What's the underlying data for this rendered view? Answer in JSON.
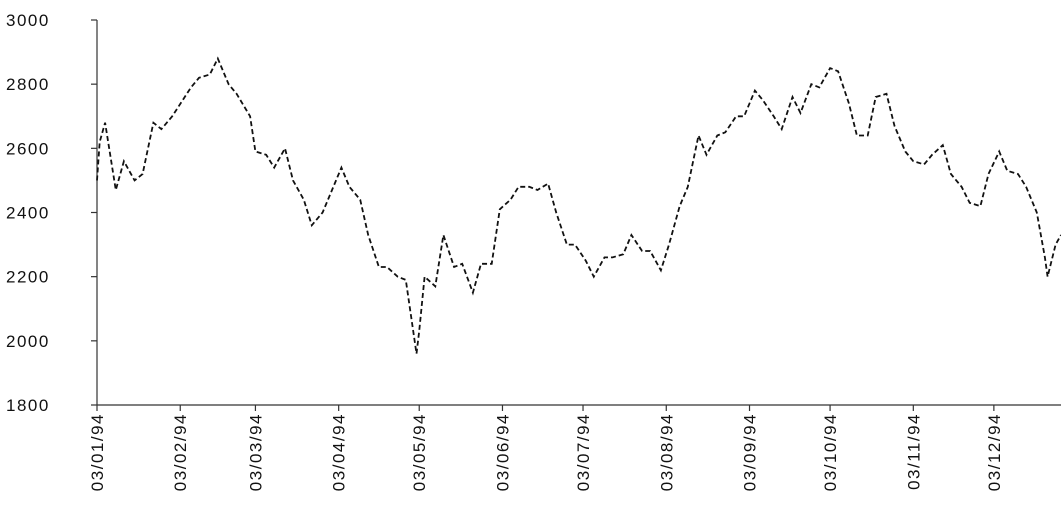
{
  "chart_data": {
    "type": "line",
    "color": "#111111",
    "x": [
      "1994-01-03",
      "1994-01-04",
      "1994-01-06",
      "1994-01-10",
      "1994-01-13",
      "1994-01-17",
      "1994-01-20",
      "1994-01-24",
      "1994-01-27",
      "1994-01-31",
      "1994-02-07",
      "1994-02-10",
      "1994-02-14",
      "1994-02-17",
      "1994-02-21",
      "1994-02-24",
      "1994-03-01",
      "1994-03-03",
      "1994-03-07",
      "1994-03-10",
      "1994-03-14",
      "1994-03-17",
      "1994-03-21",
      "1994-03-24",
      "1994-03-28",
      "1994-04-04",
      "1994-04-07",
      "1994-04-11",
      "1994-04-14",
      "1994-04-18",
      "1994-04-21",
      "1994-04-25",
      "1994-04-28",
      "1994-05-02",
      "1994-05-03",
      "1994-05-05",
      "1994-05-09",
      "1994-05-12",
      "1994-05-16",
      "1994-05-19",
      "1994-05-23",
      "1994-05-26",
      "1994-05-30",
      "1994-06-02",
      "1994-06-06",
      "1994-06-09",
      "1994-06-13",
      "1994-06-16",
      "1994-06-20",
      "1994-06-23",
      "1994-06-27",
      "1994-06-30",
      "1994-07-04",
      "1994-07-07",
      "1994-07-11",
      "1994-07-14",
      "1994-07-18",
      "1994-07-21",
      "1994-07-25",
      "1994-07-28",
      "1994-08-01",
      "1994-08-04",
      "1994-08-08",
      "1994-08-11",
      "1994-08-15",
      "1994-08-18",
      "1994-08-22",
      "1994-08-25",
      "1994-08-29",
      "1994-09-01",
      "1994-09-05",
      "1994-09-08",
      "1994-09-12",
      "1994-09-15",
      "1994-09-19",
      "1994-09-22",
      "1994-09-26",
      "1994-09-29",
      "1994-10-03",
      "1994-10-06",
      "1994-10-10",
      "1994-10-13",
      "1994-10-17",
      "1994-10-20",
      "1994-10-24",
      "1994-10-27",
      "1994-10-31",
      "1994-11-03",
      "1994-11-07",
      "1994-11-10",
      "1994-11-14",
      "1994-11-17",
      "1994-11-21",
      "1994-11-24",
      "1994-11-28",
      "1994-12-01",
      "1994-12-05",
      "1994-12-08",
      "1994-12-12",
      "1994-12-15",
      "1994-12-19",
      "1994-12-22",
      "1994-12-23",
      "1994-12-26",
      "1994-12-28"
    ],
    "values": [
      2500,
      2620,
      2680,
      2470,
      2560,
      2500,
      2520,
      2680,
      2660,
      2700,
      2790,
      2820,
      2830,
      2880,
      2800,
      2770,
      2700,
      2590,
      2580,
      2540,
      2600,
      2500,
      2440,
      2360,
      2400,
      2540,
      2480,
      2440,
      2330,
      2230,
      2230,
      2200,
      2190,
      1960,
      2030,
      2200,
      2170,
      2330,
      2230,
      2240,
      2150,
      2240,
      2240,
      2410,
      2440,
      2480,
      2480,
      2470,
      2490,
      2400,
      2300,
      2300,
      2250,
      2200,
      2260,
      2260,
      2270,
      2330,
      2280,
      2280,
      2220,
      2300,
      2420,
      2480,
      2640,
      2580,
      2640,
      2650,
      2700,
      2700,
      2780,
      2750,
      2700,
      2660,
      2760,
      2710,
      2800,
      2790,
      2850,
      2840,
      2740,
      2640,
      2640,
      2760,
      2770,
      2670,
      2590,
      2560,
      2550,
      2580,
      2610,
      2520,
      2480,
      2430,
      2420,
      2520,
      2590,
      2530,
      2520,
      2480,
      2400,
      2260,
      2200,
      2300,
      2330
    ],
    "xlim": [
      "1994-01-03",
      "1994-12-28"
    ],
    "xticks": [
      {
        "value": "1994-01-03",
        "label": "03/01/94"
      },
      {
        "value": "1994-02-03",
        "label": "03/02/94"
      },
      {
        "value": "1994-03-03",
        "label": "03/03/94"
      },
      {
        "value": "1994-04-03",
        "label": "03/04/94"
      },
      {
        "value": "1994-05-03",
        "label": "03/05/94"
      },
      {
        "value": "1994-06-03",
        "label": "03/06/94"
      },
      {
        "value": "1994-07-03",
        "label": "03/07/94"
      },
      {
        "value": "1994-08-03",
        "label": "03/08/94"
      },
      {
        "value": "1994-09-03",
        "label": "03/09/94"
      },
      {
        "value": "1994-10-03",
        "label": "03/10/94"
      },
      {
        "value": "1994-11-03",
        "label": "03/11/94"
      },
      {
        "value": "1994-12-03",
        "label": "03/12/94"
      }
    ],
    "ylim": [
      1800,
      3000
    ],
    "yticks": [
      1800,
      2000,
      2200,
      2400,
      2600,
      2800,
      3000
    ]
  }
}
